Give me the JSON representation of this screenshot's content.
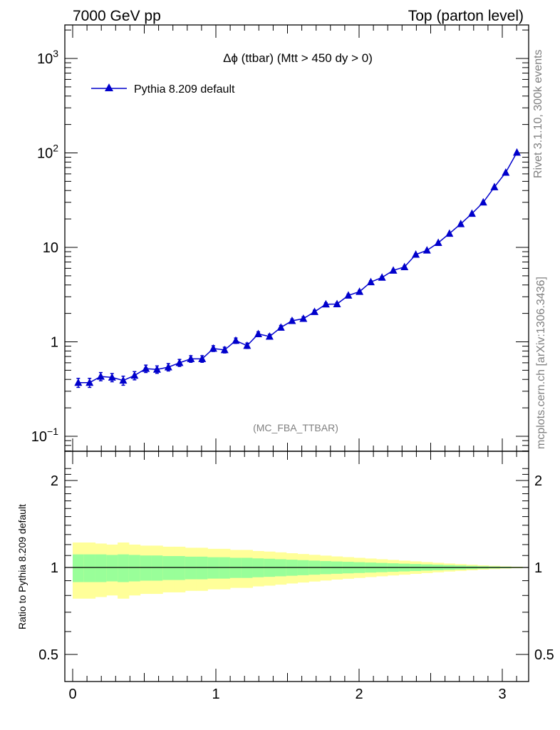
{
  "header": {
    "left": "7000 GeV pp",
    "right": "Top (parton level)"
  },
  "side": {
    "rivet": "Rivet 3.1.10,  300k events",
    "mcplots": "mcplots.cern.ch [arXiv:1306.3436]"
  },
  "colors": {
    "series": "#0000cc",
    "band_inner": "#99ff99",
    "band_outer": "#ffff99"
  },
  "chart_data": [
    {
      "type": "line",
      "title": "Δϕ (ttbar) (Mtt > 450 dy > 0)",
      "analysis_label": "(MC_FBA_TTBAR)",
      "xlabel": "",
      "ylabel": "",
      "xlim": [
        -0.1,
        3.2
      ],
      "ylim": [
        0.07,
        2300
      ],
      "y_scale": "log",
      "y_tick_labels": [
        "10^-1",
        "1",
        "10",
        "10^2",
        "10^3"
      ],
      "legend_position": "top-left",
      "series": [
        {
          "name": "Pythia 8.209 default",
          "marker": "triangle",
          "x": [
            0.039,
            0.118,
            0.196,
            0.275,
            0.353,
            0.432,
            0.511,
            0.589,
            0.668,
            0.746,
            0.825,
            0.904,
            0.982,
            1.061,
            1.139,
            1.218,
            1.296,
            1.375,
            1.454,
            1.532,
            1.611,
            1.689,
            1.768,
            1.846,
            1.925,
            2.003,
            2.082,
            2.16,
            2.239,
            2.317,
            2.396,
            2.474,
            2.553,
            2.631,
            2.71,
            2.788,
            2.867,
            2.945,
            3.024,
            3.102
          ],
          "y": [
            0.37,
            0.37,
            0.43,
            0.42,
            0.39,
            0.44,
            0.52,
            0.51,
            0.54,
            0.6,
            0.66,
            0.66,
            0.85,
            0.82,
            1.03,
            0.91,
            1.21,
            1.14,
            1.42,
            1.67,
            1.76,
            2.08,
            2.5,
            2.51,
            3.1,
            3.4,
            4.3,
            4.8,
            5.7,
            6.2,
            8.4,
            9.3,
            11.2,
            14.0,
            17.7,
            22.8,
            30.0,
            43.5,
            62.0,
            101.0
          ],
          "yerr_rel": [
            0.11,
            0.11,
            0.1,
            0.1,
            0.11,
            0.1,
            0.09,
            0.09,
            0.09,
            0.085,
            0.08,
            0.08,
            0.07,
            0.07,
            0.065,
            0.065,
            0.055,
            0.055,
            0.05,
            0.045,
            0.045,
            0.04,
            0.035,
            0.035,
            0.032,
            0.03,
            0.027,
            0.025,
            0.023,
            0.022,
            0.019,
            0.018,
            0.016,
            0.014,
            0.013,
            0.011,
            0.01,
            0.008,
            0.007,
            0.005
          ]
        }
      ]
    },
    {
      "type": "area",
      "ylabel": "Ratio to Pythia 8.209 default",
      "xlim": [
        -0.1,
        3.2
      ],
      "ylim": [
        0.35,
        2.3
      ],
      "x_tick_labels": [
        "0",
        "1",
        "2",
        "3"
      ],
      "y_tick_labels": [
        "0.5",
        "1",
        "2"
      ],
      "reference_line": 1,
      "bin_edges": [
        0.0,
        0.0785,
        0.157,
        0.2355,
        0.314,
        0.3925,
        0.471,
        0.5495,
        0.628,
        0.7065,
        0.785,
        0.8635,
        0.942,
        1.0205,
        1.099,
        1.1775,
        1.256,
        1.3345,
        1.413,
        1.4915,
        1.57,
        1.6485,
        1.727,
        1.8055,
        1.884,
        1.9625,
        2.041,
        2.1195,
        2.198,
        2.2765,
        2.355,
        2.4335,
        2.512,
        2.5905,
        2.669,
        2.7475,
        2.826,
        2.9045,
        2.983,
        3.0615,
        3.14
      ],
      "band_inner_halfwidth": [
        0.11,
        0.11,
        0.11,
        0.105,
        0.11,
        0.105,
        0.1,
        0.1,
        0.095,
        0.095,
        0.09,
        0.09,
        0.085,
        0.085,
        0.08,
        0.08,
        0.075,
        0.072,
        0.068,
        0.064,
        0.06,
        0.056,
        0.052,
        0.049,
        0.046,
        0.043,
        0.04,
        0.037,
        0.034,
        0.031,
        0.028,
        0.025,
        0.022,
        0.019,
        0.016,
        0.013,
        0.01,
        0.008,
        0.006,
        0.004
      ],
      "band_outer_halfwidth": [
        0.22,
        0.22,
        0.21,
        0.2,
        0.22,
        0.2,
        0.19,
        0.19,
        0.18,
        0.18,
        0.17,
        0.17,
        0.16,
        0.16,
        0.15,
        0.15,
        0.14,
        0.135,
        0.128,
        0.12,
        0.113,
        0.106,
        0.099,
        0.092,
        0.086,
        0.08,
        0.074,
        0.068,
        0.062,
        0.056,
        0.05,
        0.044,
        0.038,
        0.032,
        0.027,
        0.022,
        0.017,
        0.013,
        0.009,
        0.006
      ]
    }
  ]
}
